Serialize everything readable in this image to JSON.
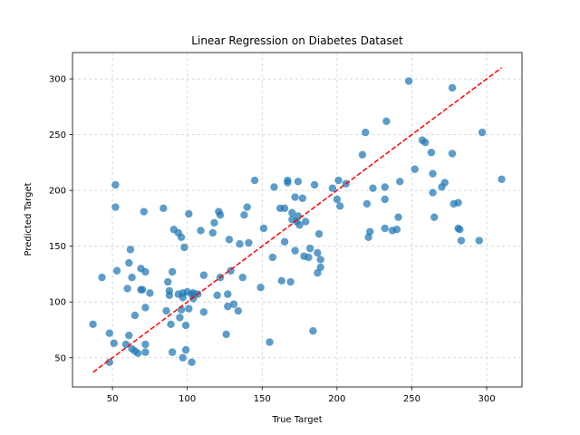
{
  "chart_data": {
    "type": "scatter",
    "title": "Linear Regression on Diabetes Dataset",
    "xlabel": "True Target",
    "ylabel": "Predicted Target",
    "xlim": [
      23.3,
      323.6
    ],
    "ylim": [
      23.8,
      323.6
    ],
    "xticks": [
      50,
      100,
      150,
      200,
      250,
      300
    ],
    "yticks": [
      50,
      100,
      150,
      200,
      250,
      300
    ],
    "grid": true,
    "colors": {
      "points": "#1f77b4",
      "fit_line": "#ff0000",
      "grid": "#d0d0d0"
    },
    "series": [
      {
        "x": [
          37,
          43,
          48,
          48,
          51,
          52,
          52,
          53,
          59,
          60,
          61,
          61,
          62,
          63,
          63,
          65,
          65,
          67,
          69,
          69,
          70,
          71,
          72,
          72,
          72,
          72,
          75,
          84,
          86,
          87,
          88,
          88,
          89,
          90,
          90,
          91,
          94,
          94,
          95,
          96,
          96,
          97,
          97,
          97,
          98,
          99,
          99,
          100,
          101,
          101,
          103,
          103,
          104,
          104,
          107,
          109,
          111,
          111,
          117,
          118,
          120,
          121,
          122,
          122,
          126,
          127,
          127,
          128,
          129,
          131,
          134,
          135,
          137,
          138,
          140,
          141,
          145,
          149,
          151,
          155,
          157,
          158,
          162,
          163,
          165,
          165,
          167,
          167,
          169,
          170,
          170,
          172,
          172,
          173,
          174,
          174,
          175,
          177,
          178,
          179,
          181,
          182,
          184,
          185,
          187,
          187,
          188,
          189,
          189,
          197,
          200,
          201,
          202,
          206,
          217,
          219,
          220,
          221,
          222,
          224,
          232,
          232,
          232,
          233,
          237,
          240,
          241,
          242,
          248,
          252,
          257,
          259,
          263,
          264,
          264,
          265,
          270,
          272,
          277,
          277,
          278,
          281,
          281,
          282,
          283,
          295,
          297,
          310
        ],
        "y": [
          80,
          122,
          72,
          46,
          63,
          185,
          205,
          128,
          62,
          112,
          70,
          135,
          147,
          58,
          122,
          88,
          56,
          54,
          111,
          130,
          111,
          181,
          95,
          127,
          62,
          55,
          108,
          184,
          92,
          118,
          110,
          106,
          80,
          127,
          55,
          165,
          162,
          107,
          86,
          158,
          93,
          50,
          108,
          104,
          149,
          79,
          57,
          109,
          94,
          179,
          107,
          46,
          103,
          108,
          107,
          164,
          91,
          124,
          162,
          171,
          106,
          181,
          178,
          122,
          71,
          107,
          96,
          156,
          128,
          98,
          92,
          152,
          122,
          178,
          185,
          153,
          209,
          113,
          166,
          64,
          140,
          203,
          184,
          119,
          154,
          184,
          207,
          209,
          118,
          180,
          174,
          194,
          146,
          172,
          177,
          208,
          169,
          193,
          141,
          172,
          140,
          148,
          74,
          205,
          144,
          126,
          161,
          131,
          138,
          202,
          192,
          209,
          186,
          206,
          232,
          252,
          188,
          158,
          163,
          202,
          166,
          203,
          192,
          262,
          164,
          165,
          176,
          208,
          298,
          219,
          245,
          243,
          234,
          198,
          215,
          176,
          203,
          207,
          292,
          233,
          188,
          189,
          166,
          165,
          155,
          155,
          252,
          210
        ]
      }
    ],
    "fit_line": {
      "x": [
        37,
        310
      ],
      "y": [
        37,
        310
      ]
    }
  }
}
